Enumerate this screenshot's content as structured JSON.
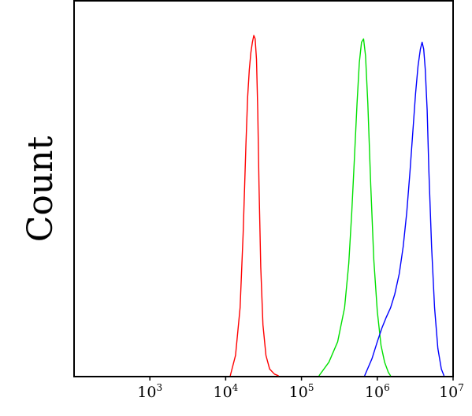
{
  "chart_data": {
    "type": "line",
    "title": "",
    "xlabel": "",
    "ylabel": "Count",
    "x_scale": "log",
    "xlim": [
      100,
      10000000
    ],
    "ylim": [
      0,
      1.0
    ],
    "grid": false,
    "legend": "none",
    "x_ticks": [
      {
        "value": 1000,
        "base": "10",
        "exp": "3"
      },
      {
        "value": 10000,
        "base": "10",
        "exp": "4"
      },
      {
        "value": 100000,
        "base": "10",
        "exp": "5"
      },
      {
        "value": 1000000,
        "base": "10",
        "exp": "6"
      },
      {
        "value": 10000000,
        "base": "10",
        "exp": "7"
      }
    ],
    "series": [
      {
        "color": "#ff0000",
        "x": [
          11500,
          13500,
          15500,
          17000,
          18500,
          19500,
          20500,
          21500,
          22500,
          23500,
          24500,
          25500,
          26500,
          27500,
          29000,
          31000,
          34000,
          38000,
          44000,
          50000
        ],
        "y": [
          0.0,
          0.06,
          0.2,
          0.42,
          0.68,
          0.82,
          0.9,
          0.95,
          0.98,
          1.0,
          0.99,
          0.93,
          0.78,
          0.56,
          0.32,
          0.15,
          0.06,
          0.02,
          0.005,
          0.0
        ]
      },
      {
        "color": "#00e000",
        "x": [
          170000,
          230000,
          300000,
          370000,
          420000,
          460000,
          500000,
          540000,
          580000,
          620000,
          660000,
          700000,
          750000,
          820000,
          900000,
          1000000,
          1120000,
          1250000,
          1400000,
          1500000
        ],
        "y": [
          0.0,
          0.04,
          0.1,
          0.2,
          0.33,
          0.48,
          0.64,
          0.8,
          0.92,
          0.98,
          0.99,
          0.94,
          0.8,
          0.56,
          0.34,
          0.19,
          0.09,
          0.04,
          0.01,
          0.0
        ]
      },
      {
        "color": "#0000ff",
        "x": [
          680000,
          850000,
          1000000,
          1150000,
          1300000,
          1500000,
          1700000,
          1950000,
          2200000,
          2450000,
          2700000,
          2950000,
          3200000,
          3450000,
          3700000,
          3900000,
          4100000,
          4300000,
          4550000,
          4800000,
          5200000,
          5700000,
          6300000,
          7000000,
          7600000
        ],
        "y": [
          0.0,
          0.05,
          0.1,
          0.14,
          0.17,
          0.2,
          0.24,
          0.3,
          0.38,
          0.48,
          0.6,
          0.72,
          0.83,
          0.91,
          0.96,
          0.98,
          0.96,
          0.9,
          0.78,
          0.6,
          0.38,
          0.2,
          0.08,
          0.02,
          0.0
        ]
      }
    ]
  }
}
